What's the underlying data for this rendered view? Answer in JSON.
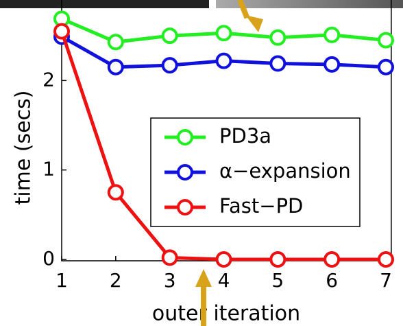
{
  "chart_data": {
    "type": "line",
    "xlabel": "outer iteration",
    "ylabel": "time (secs)",
    "x": [
      1,
      2,
      3,
      4,
      5,
      6,
      7
    ],
    "series": [
      {
        "name": "PD3a",
        "color": "#22ee22",
        "values": [
          2.69,
          2.43,
          2.5,
          2.53,
          2.48,
          2.51,
          2.45
        ]
      },
      {
        "name": "α−expansion",
        "color": "#1111dd",
        "values": [
          2.49,
          2.15,
          2.17,
          2.22,
          2.19,
          2.18,
          2.15
        ]
      },
      {
        "name": "Fast−PD",
        "color": "#ee1111",
        "values": [
          2.55,
          0.75,
          0.02,
          0,
          0,
          0,
          0
        ]
      }
    ],
    "xlim": [
      1,
      7.1
    ],
    "ylim": [
      0,
      2.9
    ],
    "xticks": [
      1,
      2,
      3,
      4,
      5,
      6,
      7
    ],
    "yticks": [
      0,
      1,
      2
    ],
    "grid": false
  }
}
